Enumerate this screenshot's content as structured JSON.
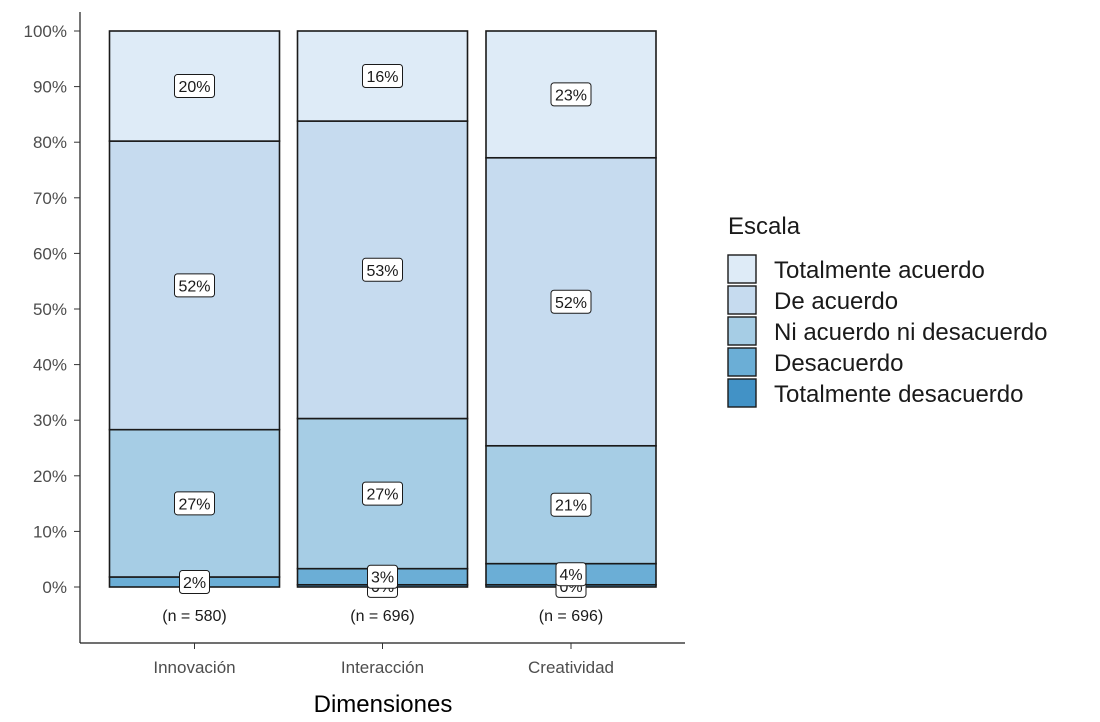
{
  "chart_data": {
    "type": "bar",
    "stacked": true,
    "percent": true,
    "categories": [
      "Innovación",
      "Interacción",
      "Creatividad"
    ],
    "sample_sizes": [
      "(n = 580)",
      "(n = 696)",
      "(n = 696)"
    ],
    "xlabel": "Dimensiones",
    "ylabel": "",
    "ylim": [
      0,
      100
    ],
    "y_ticks": [
      "0%",
      "10%",
      "20%",
      "30%",
      "40%",
      "50%",
      "60%",
      "70%",
      "80%",
      "90%",
      "100%"
    ],
    "grid": false,
    "legend_title": "Escala",
    "legend_position": "right",
    "series": [
      {
        "name": "Totalmente desacuerdo",
        "color": "#4292c6",
        "values": [
          0,
          0.4,
          0.4
        ],
        "labels": [
          "",
          "0%",
          "0%"
        ]
      },
      {
        "name": "Desacuerdo",
        "color": "#6baed6",
        "values": [
          1.8,
          2.9,
          3.8
        ],
        "labels": [
          "2%",
          "3%",
          "4%"
        ]
      },
      {
        "name": "Ni acuerdo ni desacuerdo",
        "color": "#a6cde5",
        "values": [
          26.5,
          27.0,
          21.2
        ],
        "labels": [
          "27%",
          "27%",
          "21%"
        ]
      },
      {
        "name": "De acuerdo",
        "color": "#c6dbef",
        "values": [
          51.9,
          53.5,
          51.8
        ],
        "labels": [
          "52%",
          "53%",
          "52%"
        ]
      },
      {
        "name": "Totalmente acuerdo",
        "color": "#deebf7",
        "values": [
          19.8,
          16.2,
          22.8
        ],
        "labels": [
          "20%",
          "16%",
          "23%"
        ]
      }
    ]
  }
}
